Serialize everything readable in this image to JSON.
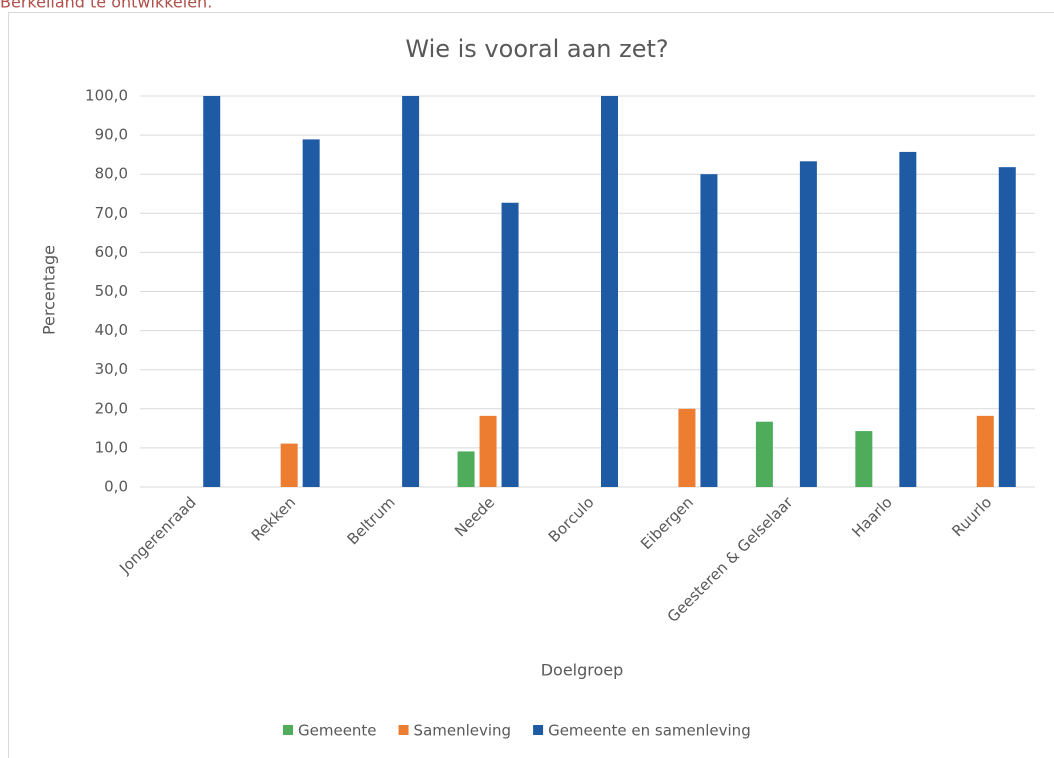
{
  "page_text": "Berkelland te ontwikkelen.",
  "chart_data": {
    "type": "bar",
    "title": "Wie is vooral aan zet?",
    "x_label": "Doelgroep",
    "y_label": "Percentage",
    "categories": [
      "Jongerenraad",
      "Rekken",
      "Beltrum",
      "Neede",
      "Borculo",
      "Eibergen",
      "Geesteren & Gelselaar",
      "Haarlo",
      "Ruurlo"
    ],
    "series": [
      {
        "name": "Gemeente",
        "color": "#4eac5b",
        "values": [
          0,
          0,
          0,
          9.1,
          0,
          0,
          16.7,
          14.3,
          0
        ]
      },
      {
        "name": "Samenleving",
        "color": "#ed7d31",
        "values": [
          0,
          11.1,
          0,
          18.2,
          0,
          20,
          0,
          0,
          18.2
        ]
      },
      {
        "name": "Gemeente en samenleving",
        "color": "#1f5ba5",
        "values": [
          100,
          88.9,
          100,
          72.7,
          100,
          80,
          83.3,
          85.7,
          81.8
        ]
      }
    ],
    "ylim": [
      0,
      100
    ],
    "yticks": [
      {
        "value": 0,
        "label": "0,0"
      },
      {
        "value": 10,
        "label": "10,0"
      },
      {
        "value": 20,
        "label": "20,0"
      },
      {
        "value": 30,
        "label": "30,0"
      },
      {
        "value": 40,
        "label": "40,0"
      },
      {
        "value": 50,
        "label": "50,0"
      },
      {
        "value": 60,
        "label": "60,0"
      },
      {
        "value": 70,
        "label": "70,0"
      },
      {
        "value": 80,
        "label": "80,0"
      },
      {
        "value": 90,
        "label": "90,0"
      },
      {
        "value": 100,
        "label": "100,0"
      }
    ],
    "grid": true,
    "legend": "bottom"
  }
}
